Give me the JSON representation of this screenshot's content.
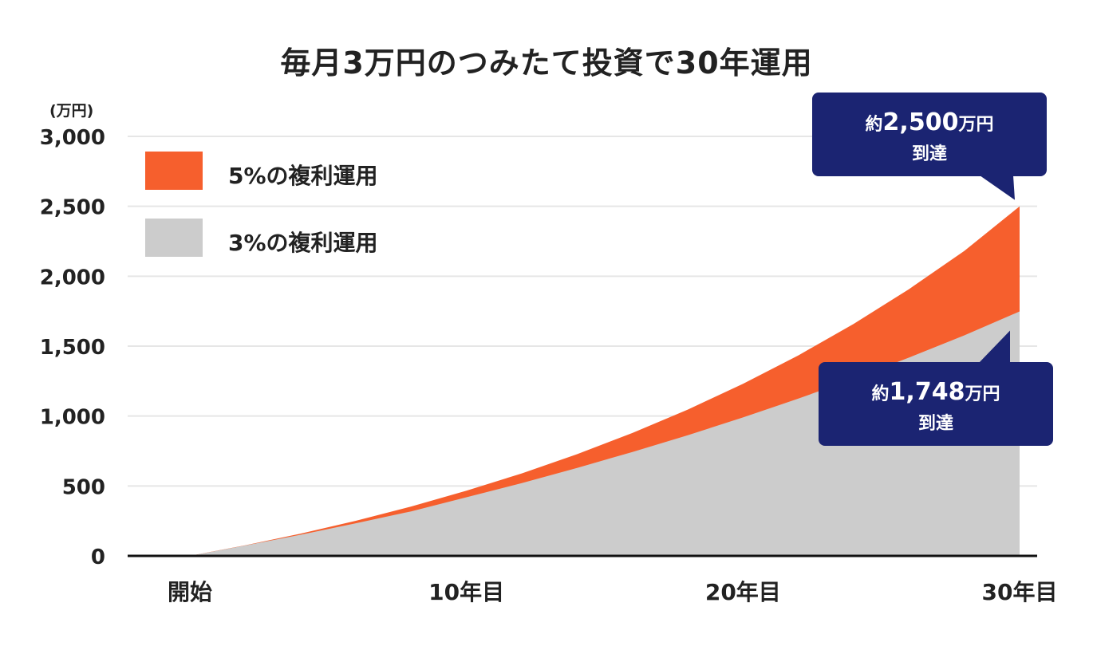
{
  "chart_data": {
    "type": "area",
    "title": "毎月3万円のつみたて投資で30年運用",
    "y_unit": "(万円)",
    "ylim": [
      0,
      3000
    ],
    "y_ticks": [
      0,
      500,
      1000,
      1500,
      2000,
      2500,
      3000
    ],
    "y_tick_labels": [
      "0",
      "500",
      "1,000",
      "1,500",
      "2,000",
      "2,500",
      "3,000"
    ],
    "x_ticks": [
      0,
      10,
      20,
      30
    ],
    "x_tick_labels": [
      "開始",
      "10年目",
      "20年目",
      "30年目"
    ],
    "grid": true,
    "legend": "top-left",
    "x": [
      0,
      2,
      4,
      6,
      8,
      10,
      12,
      14,
      16,
      18,
      20,
      22,
      24,
      26,
      28,
      30
    ],
    "series": [
      {
        "name": "5%の複利運用",
        "color": "#f65f2d",
        "values": [
          0,
          76,
          159,
          251,
          353,
          466,
          590,
          727,
          879,
          1046,
          1230,
          1434,
          1659,
          1907,
          2181,
          2500
        ]
      },
      {
        "name": "3%の複利運用",
        "color": "#cccccc",
        "values": [
          0,
          74,
          151,
          233,
          318,
          419,
          521,
          629,
          743,
          863,
          990,
          1125,
          1267,
          1418,
          1577,
          1748
        ]
      }
    ],
    "annotations": [
      {
        "prefix": "約",
        "value": "2,500",
        "unit": "万円",
        "suffix": "到達",
        "series": "5%の複利運用"
      },
      {
        "prefix": "約",
        "value": "1,748",
        "unit": "万円",
        "suffix": "到達",
        "series": "3%の複利運用"
      }
    ]
  }
}
